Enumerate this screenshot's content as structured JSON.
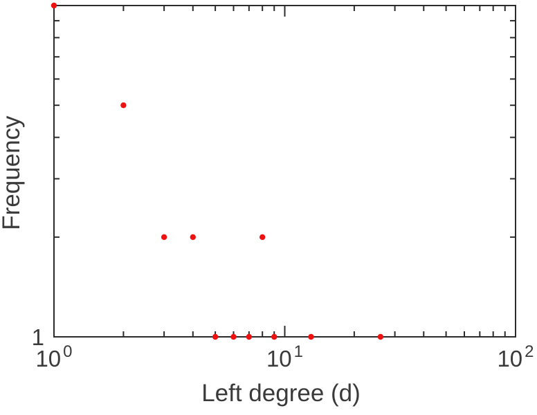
{
  "chart_data": {
    "type": "scatter",
    "x_scale": "log",
    "y_scale": "log",
    "xlim": [
      1,
      100
    ],
    "ylim": [
      1,
      10
    ],
    "xlabel": "Left degree (d)",
    "ylabel": "Frequency",
    "x_tick_labels": [
      {
        "base": "10",
        "exp": "0"
      },
      {
        "base": "10",
        "exp": "1"
      },
      {
        "base": "10",
        "exp": "2"
      }
    ],
    "y_tick_labels": [
      "1"
    ],
    "grid": false,
    "legend": false,
    "marker": "filled-circle",
    "point_color": "#ee1111",
    "axis_color": "#2b2b2b",
    "text_color": "#3a3a3a",
    "points": [
      {
        "x": 1,
        "y": 10
      },
      {
        "x": 2,
        "y": 5
      },
      {
        "x": 3,
        "y": 2
      },
      {
        "x": 4,
        "y": 2
      },
      {
        "x": 5,
        "y": 1
      },
      {
        "x": 6,
        "y": 1
      },
      {
        "x": 7,
        "y": 1
      },
      {
        "x": 8,
        "y": 2
      },
      {
        "x": 9,
        "y": 1
      },
      {
        "x": 13,
        "y": 1
      },
      {
        "x": 26,
        "y": 1
      }
    ]
  }
}
